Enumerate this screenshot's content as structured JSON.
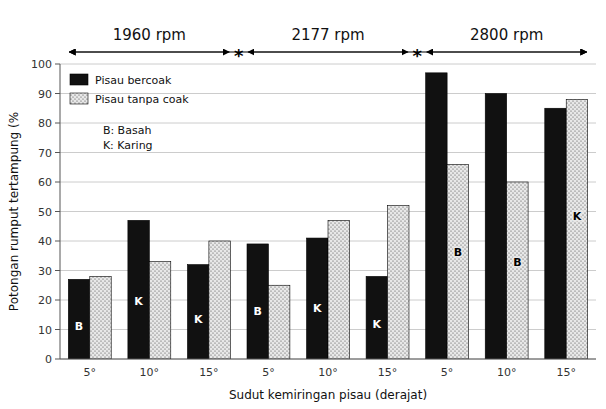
{
  "chart_data": {
    "type": "bar",
    "xlabel": "Sudut kemiringan pisau (derajat)",
    "ylabel": "Potongan rumput tertampung (%",
    "categories": [
      "5°",
      "10°",
      "15°",
      "5°",
      "10°",
      "15°",
      "5°",
      "10°",
      "15°"
    ],
    "series": [
      {
        "name": "Pisau bercoak",
        "color": "#111111",
        "values": [
          27,
          47,
          32,
          39,
          41,
          28,
          97,
          90,
          85
        ],
        "bar_labels": [
          "B",
          "K",
          "K",
          "B",
          "K",
          "K",
          null,
          null,
          null
        ]
      },
      {
        "name": "Pisau tanpa coak",
        "color": "#e8e8e8",
        "values": [
          28,
          33,
          40,
          25,
          47,
          52,
          66,
          60,
          88
        ],
        "bar_labels": [
          null,
          null,
          null,
          null,
          null,
          null,
          "B",
          "B",
          "K"
        ]
      }
    ],
    "category_groups": [
      {
        "label": "1960 rpm",
        "categories": [
          0,
          1,
          2
        ]
      },
      {
        "label": "2177 rpm",
        "categories": [
          3,
          4,
          5
        ]
      },
      {
        "label": "2800 rpm",
        "categories": [
          6,
          7,
          8
        ]
      }
    ],
    "group_separator": "*",
    "annotation": "B: Basah\nK: Karing",
    "ylim": [
      0,
      100
    ],
    "yticks": [
      0,
      10,
      20,
      30,
      40,
      50,
      60,
      70,
      80,
      90,
      100
    ],
    "grid": true,
    "legend": "upper left"
  }
}
